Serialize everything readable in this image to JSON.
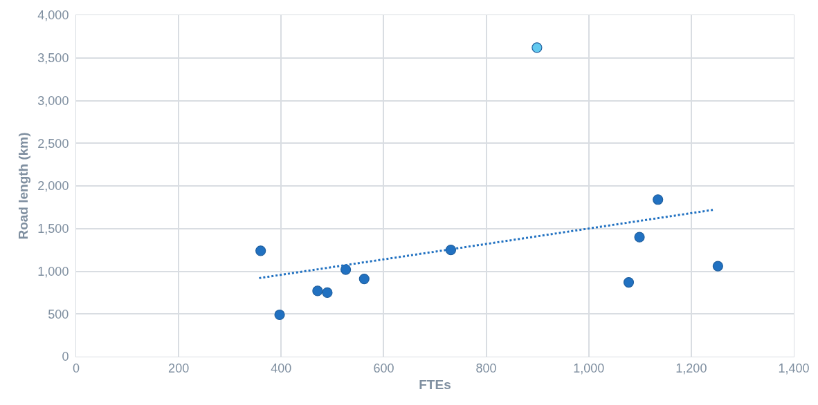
{
  "chart_data": {
    "type": "scatter",
    "xlabel": "FTEs",
    "ylabel": "Road length (km)",
    "xlim": [
      0,
      1400
    ],
    "xticks": [
      0,
      {
        "value": 200,
        "label": "200"
      },
      {
        "value": 400,
        "label": "400"
      },
      {
        "value": 600,
        "label": "600"
      },
      {
        "value": 800,
        "label": "800"
      },
      {
        "value": 1000,
        "label": "1,000"
      },
      {
        "value": 1200,
        "label": "1,200"
      },
      {
        "value": 1400,
        "label": "1,400"
      }
    ],
    "ylim": [
      0,
      4000
    ],
    "yticks": [
      0,
      {
        "value": 500,
        "label": "500"
      },
      {
        "value": 1000,
        "label": "1,000"
      },
      {
        "value": 1500,
        "label": "1,500"
      },
      {
        "value": 2000,
        "label": "2,000"
      },
      {
        "value": 2500,
        "label": "2,500"
      },
      {
        "value": 3000,
        "label": "3,000"
      },
      {
        "value": 3500,
        "label": "3,500"
      },
      {
        "value": 4000,
        "label": "4,000"
      }
    ],
    "grid": true,
    "marker": "circle",
    "series": [
      {
        "color": "#2171c1",
        "x": [
          360,
          397,
          471,
          490,
          526,
          562,
          731,
          1078,
          1099,
          1135,
          1252
        ],
        "values": [
          1240,
          490,
          770,
          750,
          1020,
          910,
          1250,
          870,
          1400,
          1840,
          1060
        ]
      },
      {
        "color": "#62c9ef",
        "x": [
          899
        ],
        "values": [
          3620
        ]
      },
      {
        "type": "line",
        "color": "#2171c1",
        "marker": "none",
        "line_style": "dotted",
        "x": [
          357,
          1243
        ],
        "values": [
          920,
          1720
        ]
      }
    ]
  }
}
